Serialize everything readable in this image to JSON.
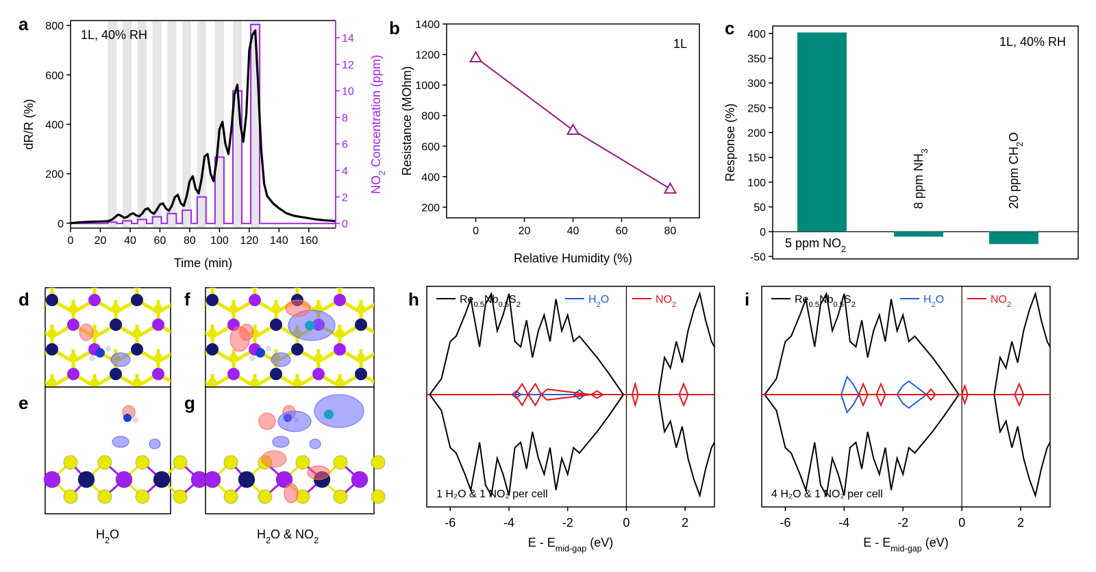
{
  "panel_labels": {
    "a": "a",
    "b": "b",
    "c": "c",
    "d": "d",
    "e": "e",
    "f": "f",
    "g": "g",
    "h": "h",
    "i": "i"
  },
  "structures": {
    "caption_left": {
      "main": "H",
      "sub": "2",
      "rest": "O"
    },
    "caption_right": {
      "main": "H",
      "sub": "2",
      "mid": "O & NO",
      "sub2": "2"
    },
    "colors": {
      "S": "#e8e800",
      "Re": "#141870",
      "Nb": "#a020f0",
      "positive": "#ff6b6b",
      "negative": "#6a6aff"
    }
  },
  "chart_data": [
    {
      "id": "a",
      "type": "line",
      "annotation": "1L, 40% RH",
      "xlabel": "Time (min)",
      "ylabel": "dR/R (%)",
      "y2label": {
        "a": "NO",
        "sub": "2",
        "b": " Concentration (ppm)"
      },
      "xlim": [
        0,
        178
      ],
      "ylim": [
        -20,
        820
      ],
      "y2lim": [
        -0.35,
        15.3
      ],
      "xticks": [
        0,
        20,
        40,
        60,
        80,
        100,
        120,
        140,
        160
      ],
      "yticks": [
        0,
        200,
        400,
        600,
        800
      ],
      "y2ticks": [
        0,
        2,
        4,
        6,
        8,
        10,
        12,
        14
      ],
      "exposure_windows": [
        [
          25,
          31
        ],
        [
          35,
          41
        ],
        [
          45,
          51
        ],
        [
          55,
          61
        ],
        [
          65,
          71
        ],
        [
          75,
          81
        ],
        [
          85,
          91
        ],
        [
          97,
          103
        ],
        [
          109,
          115
        ],
        [
          121,
          127
        ]
      ],
      "response": {
        "color": "#000000",
        "x": [
          0,
          5,
          10,
          15,
          20,
          25,
          28,
          30,
          32,
          34,
          36,
          38,
          40,
          42,
          44,
          46,
          48,
          50,
          52,
          54,
          56,
          58,
          60,
          62,
          64,
          66,
          68,
          70,
          72,
          74,
          76,
          78,
          80,
          82,
          84,
          86,
          88,
          90,
          92,
          94,
          96,
          98,
          100,
          102,
          104,
          106,
          108,
          110,
          112,
          114,
          116,
          118,
          120,
          122,
          124,
          126,
          127,
          128,
          130,
          132,
          134,
          136,
          138,
          140,
          145,
          150,
          155,
          160,
          165,
          170,
          175,
          178
        ],
        "y": [
          0,
          3,
          5,
          6,
          7,
          8,
          15,
          25,
          35,
          30,
          22,
          25,
          35,
          40,
          32,
          27,
          38,
          55,
          60,
          45,
          38,
          55,
          75,
          80,
          60,
          50,
          70,
          105,
          115,
          80,
          70,
          110,
          170,
          190,
          140,
          120,
          180,
          270,
          280,
          200,
          170,
          250,
          380,
          410,
          320,
          280,
          380,
          520,
          560,
          400,
          330,
          440,
          700,
          760,
          780,
          560,
          420,
          300,
          160,
          110,
          95,
          80,
          70,
          60,
          40,
          30,
          25,
          20,
          15,
          12,
          10,
          8
        ]
      },
      "concentration": {
        "color": "#a020f0",
        "x": [
          0,
          25,
          25,
          31,
          31,
          35,
          35,
          41,
          41,
          45,
          45,
          51,
          51,
          55,
          55,
          61,
          61,
          65,
          65,
          71,
          71,
          75,
          75,
          81,
          81,
          85,
          85,
          91,
          91,
          97,
          97,
          103,
          103,
          109,
          109,
          115,
          115,
          121,
          121,
          127,
          127,
          178
        ],
        "y": [
          0,
          0,
          0.1,
          0.1,
          0,
          0,
          0.2,
          0.2,
          0,
          0,
          0.3,
          0.3,
          0,
          0,
          0.5,
          0.5,
          0,
          0,
          0.75,
          0.75,
          0,
          0,
          1,
          1,
          0,
          0,
          2,
          2,
          0,
          0,
          5,
          5,
          0,
          0,
          10,
          10,
          0,
          0,
          15,
          15,
          0,
          0
        ]
      }
    },
    {
      "id": "b",
      "type": "line",
      "annotation": "1L",
      "xlabel": "Relative Humidity (%)",
      "ylabel": "Resistance (MOhm)",
      "xlim": [
        -12,
        92
      ],
      "ylim": [
        130,
        1400
      ],
      "xticks": [
        0,
        20,
        40,
        60,
        80
      ],
      "yticks": [
        200,
        400,
        600,
        800,
        1000,
        1200,
        1400
      ],
      "color": "#951b81",
      "x": [
        0,
        40,
        80
      ],
      "y": [
        1180,
        705,
        320
      ]
    },
    {
      "id": "c",
      "type": "bar",
      "annotation": "1L, 40% RH",
      "ylabel": "Response (%)",
      "ylim": [
        -55,
        415
      ],
      "yticks": [
        -50,
        0,
        50,
        100,
        150,
        200,
        250,
        300,
        350,
        400
      ],
      "color": "#00897b",
      "categories": [
        {
          "a": "5 ppm NO",
          "sub": "2",
          "b": ""
        },
        {
          "a": "8 ppm NH",
          "sub": "3",
          "b": ""
        },
        {
          "a": "20 ppm CH",
          "sub": "2",
          "b": "O"
        }
      ],
      "values": [
        402,
        -10,
        -25
      ]
    },
    {
      "id": "h",
      "type": "line",
      "xlabel": {
        "a": "E - E",
        "sub": "mid-gap",
        "b": " (eV)"
      },
      "xlim": [
        -6.8,
        3.0
      ],
      "xticks": [
        -6,
        -4,
        -2,
        0,
        2
      ],
      "xticklabels": [
        "-6",
        "-4",
        "-2",
        "0",
        "2"
      ],
      "legend": [
        {
          "a": "Re",
          "s1": "0.5",
          "b": "Nb",
          "s2": "0.5",
          "c": "S",
          "s3": "2",
          "color": "#000000"
        },
        {
          "a": "H",
          "s1": "2",
          "b": "O",
          "color": "#1f5fd6"
        },
        {
          "a": "NO",
          "s1": "2",
          "b": "",
          "color": "#e8141c"
        }
      ],
      "note": "1 H₂O & 1 NO₂ per cell",
      "gap_line": 0,
      "series": [
        {
          "name": "Re0.5Nb0.5S2",
          "color": "#000000",
          "x": [
            -6.7,
            -6.3,
            -6.0,
            -5.8,
            -5.5,
            -5.3,
            -5.0,
            -4.8,
            -4.6,
            -4.4,
            -4.2,
            -4.0,
            -3.8,
            -3.6,
            -3.4,
            -3.2,
            -3.0,
            -2.8,
            -2.6,
            -2.4,
            -2.2,
            -2.0,
            -1.8,
            -1.6,
            -1.3,
            -1.0,
            -0.6,
            -0.1
          ],
          "y": [
            0,
            0.15,
            0.5,
            0.55,
            0.75,
            0.9,
            0.45,
            0.85,
            0.95,
            0.6,
            0.75,
            0.95,
            0.5,
            0.45,
            0.7,
            0.35,
            0.6,
            0.75,
            0.5,
            0.9,
            0.6,
            0.75,
            0.5,
            0.55,
            0.45,
            0.35,
            0.2,
            0
          ]
        },
        {
          "name": "Re0.5Nb0.5S2-cb",
          "color": "#000000",
          "x": [
            1.1,
            1.3,
            1.5,
            1.7,
            1.9,
            2.1,
            2.3,
            2.5,
            2.7,
            2.9,
            3.0
          ],
          "y": [
            0,
            0.35,
            0.25,
            0.5,
            0.3,
            0.6,
            0.8,
            0.95,
            0.7,
            0.5,
            0.45
          ]
        },
        {
          "name": "H2O",
          "color": "#1f5fd6",
          "x": [
            -3.9,
            -3.75,
            -3.6,
            -1.8,
            -1.6,
            -1.4
          ],
          "y": [
            0,
            0.04,
            0,
            0,
            0.05,
            0
          ]
        },
        {
          "name": "NO2",
          "color": "#e8141c",
          "x": [
            -3.8,
            -3.55,
            -3.35,
            -3.1,
            -2.9,
            -2.7,
            -1.2,
            -1.0,
            -0.8
          ],
          "y": [
            0,
            0.12,
            0,
            0.12,
            0,
            0.06,
            0,
            0.04,
            0
          ]
        },
        {
          "name": "NO2-cb",
          "color": "#e8141c",
          "x": [
            0.2,
            0.3,
            0.4,
            1.8,
            1.95,
            2.1
          ],
          "y": [
            0,
            -0.12,
            0,
            0,
            0.12,
            0
          ]
        }
      ]
    },
    {
      "id": "i",
      "type": "line",
      "xlabel": {
        "a": "E - E",
        "sub": "mid-gap",
        "b": " (eV)"
      },
      "xlim": [
        -6.8,
        3.0
      ],
      "xticks": [
        -6,
        -4,
        -2,
        0,
        2
      ],
      "xticklabels": [
        "-6",
        "-4",
        "-2",
        "0",
        "2"
      ],
      "legend": [
        {
          "a": "Re",
          "s1": "0.5",
          "b": "Nb",
          "s2": "0.5",
          "c": "S",
          "s3": "2",
          "color": "#000000"
        },
        {
          "a": "H",
          "s1": "2",
          "b": "O",
          "color": "#1f5fd6"
        },
        {
          "a": "NO",
          "s1": "2",
          "b": "",
          "color": "#e8141c"
        }
      ],
      "note": "4 H₂O & 1 NO₂ per cell",
      "gap_line": 0,
      "series": [
        {
          "name": "Re0.5Nb0.5S2",
          "color": "#000000",
          "x": [
            -6.7,
            -6.3,
            -6.0,
            -5.8,
            -5.5,
            -5.3,
            -5.0,
            -4.8,
            -4.6,
            -4.4,
            -4.2,
            -4.0,
            -3.8,
            -3.6,
            -3.4,
            -3.2,
            -3.0,
            -2.8,
            -2.6,
            -2.4,
            -2.2,
            -2.0,
            -1.8,
            -1.6,
            -1.3,
            -1.0,
            -0.6,
            -0.1
          ],
          "y": [
            0,
            0.15,
            0.5,
            0.55,
            0.75,
            0.9,
            0.45,
            0.85,
            0.95,
            0.6,
            0.75,
            0.95,
            0.5,
            0.45,
            0.7,
            0.35,
            0.6,
            0.75,
            0.5,
            0.9,
            0.6,
            0.75,
            0.5,
            0.55,
            0.45,
            0.35,
            0.2,
            0
          ]
        },
        {
          "name": "Re0.5Nb0.5S2-cb",
          "color": "#000000",
          "x": [
            1.1,
            1.3,
            1.5,
            1.7,
            1.9,
            2.1,
            2.3,
            2.5,
            2.7,
            2.9,
            3.0
          ],
          "y": [
            0,
            0.35,
            0.25,
            0.5,
            0.3,
            0.6,
            0.8,
            0.95,
            0.7,
            0.5,
            0.45
          ]
        },
        {
          "name": "H2O",
          "color": "#1f5fd6",
          "x": [
            -4.1,
            -3.9,
            -3.7,
            -3.5,
            -2.2,
            -2.0,
            -1.8,
            -1.6,
            -1.4,
            -1.2
          ],
          "y": [
            0,
            0.2,
            0.12,
            0,
            0,
            0.1,
            0.15,
            0.1,
            0.05,
            0
          ]
        },
        {
          "name": "NO2",
          "color": "#e8141c",
          "x": [
            -3.5,
            -3.35,
            -3.2,
            -2.9,
            -2.75,
            -2.6,
            -1.2,
            -1.05,
            -0.9,
            -6.75
          ],
          "y": [
            0,
            0.12,
            0,
            0,
            0.12,
            0,
            0,
            0.06,
            0,
            0
          ]
        },
        {
          "name": "NO2-cb",
          "color": "#e8141c",
          "x": [
            0.0,
            0.1,
            0.2,
            1.8,
            1.95,
            2.1
          ],
          "y": [
            0,
            -0.1,
            0,
            0,
            0.12,
            0
          ]
        }
      ]
    }
  ]
}
